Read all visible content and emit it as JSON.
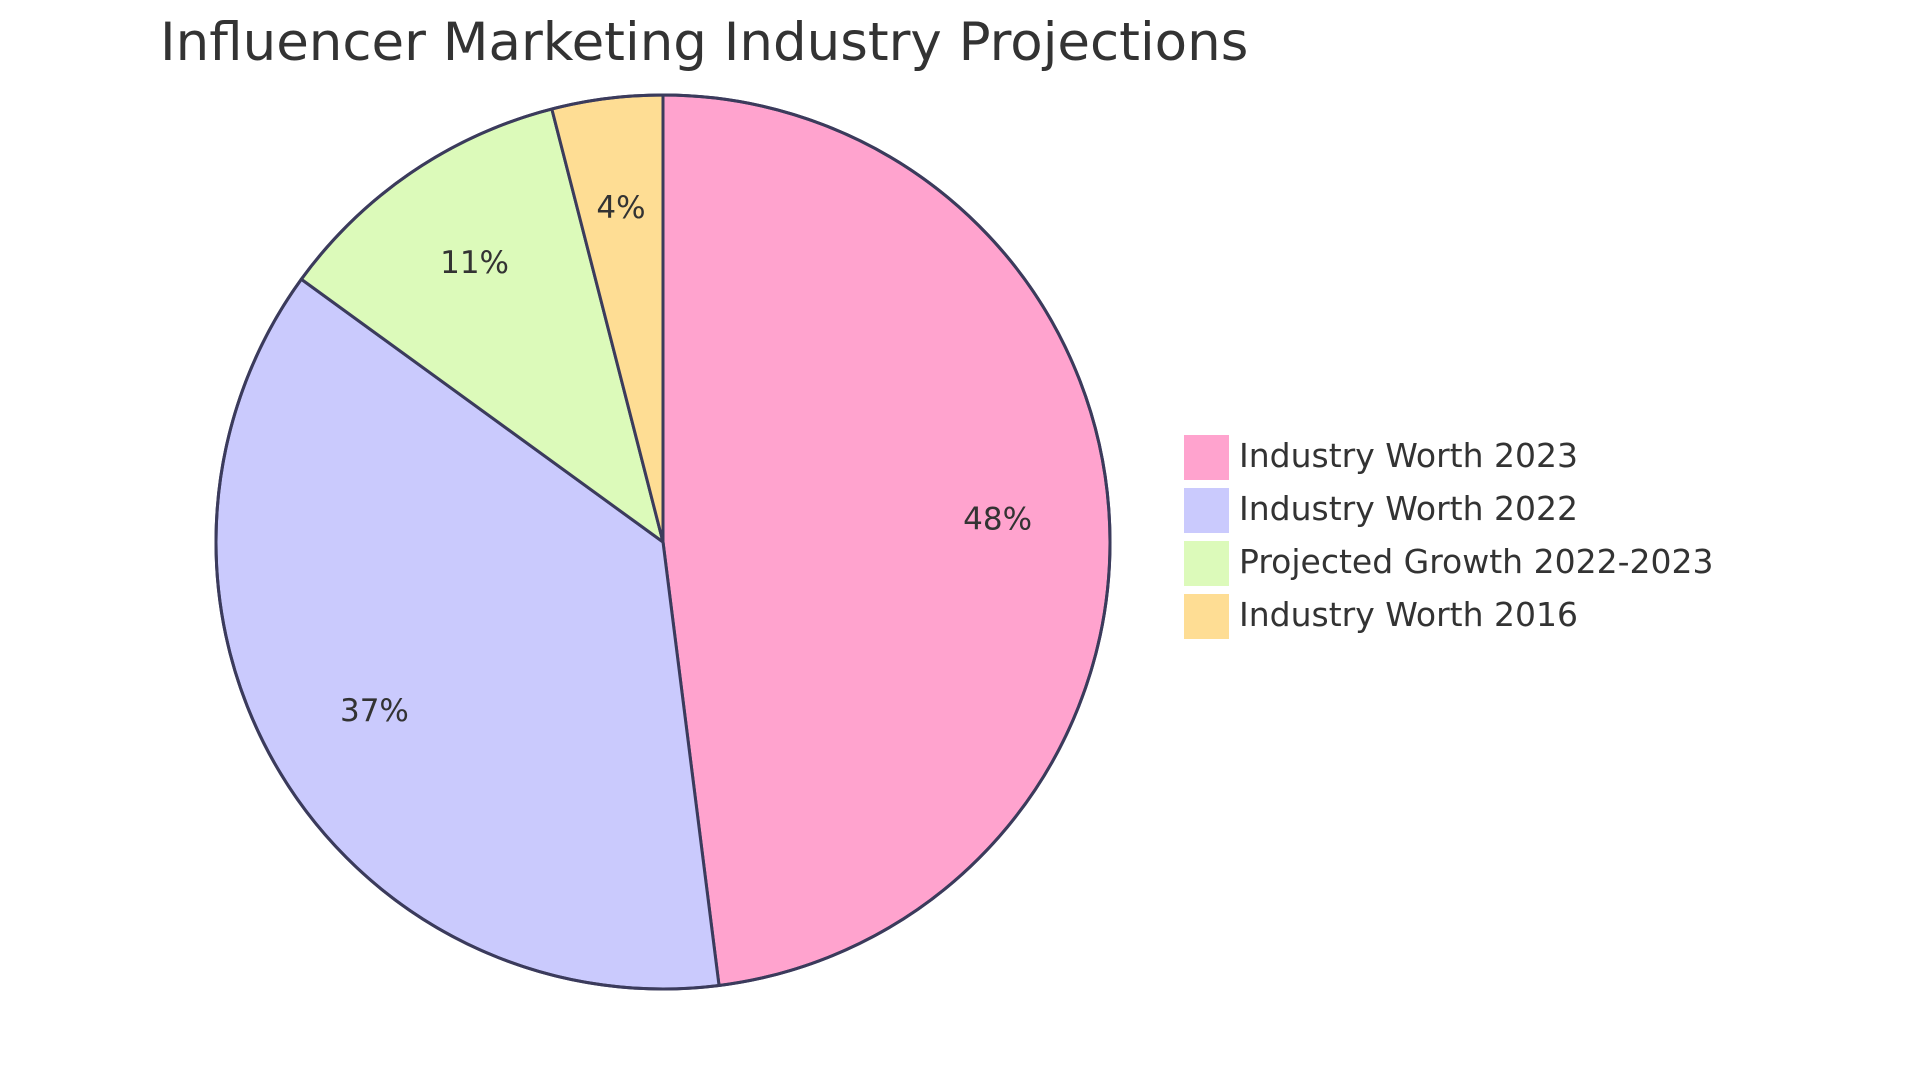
{
  "chart_data": {
    "type": "pie",
    "title": "Influencer Marketing Industry Projections",
    "legend_position": "right",
    "start_angle_deg": 0,
    "direction": "clockwise",
    "slices": [
      {
        "label": "Industry Worth 2023",
        "value": 48,
        "display": "48%",
        "color": "#FFA3CE"
      },
      {
        "label": "Industry Worth 2022",
        "value": 37,
        "display": "37%",
        "color": "#CACAFD"
      },
      {
        "label": "Projected Growth 2022-2023",
        "value": 11,
        "display": "11%",
        "color": "#DCFABA"
      },
      {
        "label": "Industry Worth 2016",
        "value": 4,
        "display": "4%",
        "color": "#FEDD94"
      }
    ],
    "stroke_color": "#3B3B5C"
  }
}
